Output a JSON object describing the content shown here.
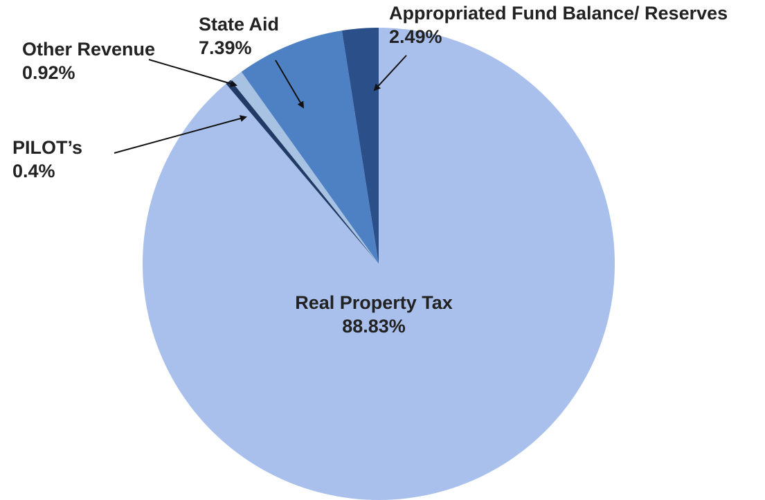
{
  "chart_data": {
    "type": "pie",
    "title": "",
    "slices": [
      {
        "label": "Real Property Tax",
        "value_label": "88.83%",
        "value": 88.83,
        "color": "#aac0ec"
      },
      {
        "label": "PILOT’s",
        "value_label": "0.4%",
        "value": 0.4,
        "color": "#1f3b66"
      },
      {
        "label": "Other Revenue",
        "value_label": "0.92%",
        "value": 0.92,
        "color": "#a7c2e3"
      },
      {
        "label": "State Aid",
        "value_label": "7.39%",
        "value": 7.39,
        "color": "#4e81c4"
      },
      {
        "label": "Appropriated Fund Balance/ Reserves",
        "value_label": "2.49%",
        "value": 2.49,
        "color": "#2b4f89"
      }
    ],
    "legend": "none"
  }
}
